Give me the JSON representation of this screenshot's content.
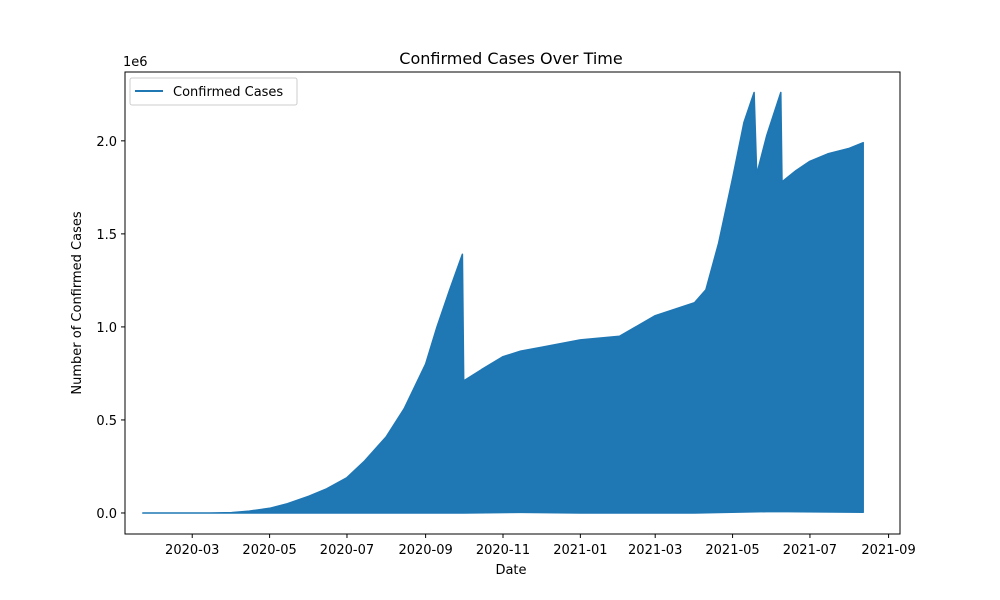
{
  "chart_data": {
    "type": "area",
    "title": "Confirmed Cases Over Time",
    "xlabel": "Date",
    "ylabel": "Number of Confirmed Cases",
    "y_offset_label": "1e6",
    "x_range": [
      "2020-01-08",
      "2021-09-10"
    ],
    "ylim": [
      -0.113,
      2.37
    ],
    "y_ticks": [
      0.0,
      0.5,
      1.0,
      1.5,
      2.0
    ],
    "y_tick_labels": [
      "0.0",
      "0.5",
      "1.0",
      "1.5",
      "2.0"
    ],
    "x_ticks": [
      "2020-03-01",
      "2020-05-01",
      "2020-07-01",
      "2020-09-01",
      "2020-11-01",
      "2021-01-01",
      "2021-03-01",
      "2021-05-01",
      "2021-07-01",
      "2021-09-01"
    ],
    "x_tick_labels": [
      "2020-03",
      "2020-05",
      "2020-07",
      "2020-09",
      "2020-11",
      "2021-01",
      "2021-03",
      "2021-05",
      "2021-07",
      "2021-09"
    ],
    "legend": {
      "label": "Confirmed Cases",
      "placement": "top-left"
    },
    "series": [
      {
        "name": "Confirmed Cases",
        "color": "#1f77b4",
        "upper": [
          [
            "2020-01-22",
            0.0
          ],
          [
            "2020-02-15",
            0.0
          ],
          [
            "2020-03-15",
            0.0
          ],
          [
            "2020-04-01",
            0.002
          ],
          [
            "2020-04-15",
            0.01
          ],
          [
            "2020-05-01",
            0.025
          ],
          [
            "2020-05-15",
            0.05
          ],
          [
            "2020-06-01",
            0.09
          ],
          [
            "2020-06-15",
            0.13
          ],
          [
            "2020-07-01",
            0.19
          ],
          [
            "2020-07-15",
            0.28
          ],
          [
            "2020-08-01",
            0.41
          ],
          [
            "2020-08-15",
            0.56
          ],
          [
            "2020-09-01",
            0.8
          ],
          [
            "2020-09-10",
            1.0
          ],
          [
            "2020-09-20",
            1.2
          ],
          [
            "2020-09-30",
            1.39
          ],
          [
            "2020-10-01",
            0.71
          ],
          [
            "2020-10-15",
            0.77
          ],
          [
            "2020-11-01",
            0.84
          ],
          [
            "2020-11-15",
            0.87
          ],
          [
            "2020-12-01",
            0.89
          ],
          [
            "2021-01-01",
            0.93
          ],
          [
            "2021-02-01",
            0.95
          ],
          [
            "2021-03-01",
            1.06
          ],
          [
            "2021-04-01",
            1.13
          ],
          [
            "2021-04-10",
            1.2
          ],
          [
            "2021-04-20",
            1.45
          ],
          [
            "2021-05-01",
            1.8
          ],
          [
            "2021-05-10",
            2.1
          ],
          [
            "2021-05-18",
            2.26
          ],
          [
            "2021-05-20",
            1.82
          ],
          [
            "2021-05-28",
            2.03
          ],
          [
            "2021-06-08",
            2.26
          ],
          [
            "2021-06-09",
            1.78
          ],
          [
            "2021-06-20",
            1.84
          ],
          [
            "2021-07-01",
            1.89
          ],
          [
            "2021-07-15",
            1.93
          ],
          [
            "2021-08-01",
            1.96
          ],
          [
            "2021-08-12",
            1.99
          ]
        ],
        "lower": [
          [
            "2020-01-22",
            0.0
          ],
          [
            "2020-10-01",
            0.0
          ],
          [
            "2020-11-15",
            0.003
          ],
          [
            "2021-01-01",
            0.0
          ],
          [
            "2021-04-01",
            0.0
          ],
          [
            "2021-06-01",
            0.008
          ],
          [
            "2021-08-12",
            0.004
          ]
        ]
      }
    ]
  }
}
